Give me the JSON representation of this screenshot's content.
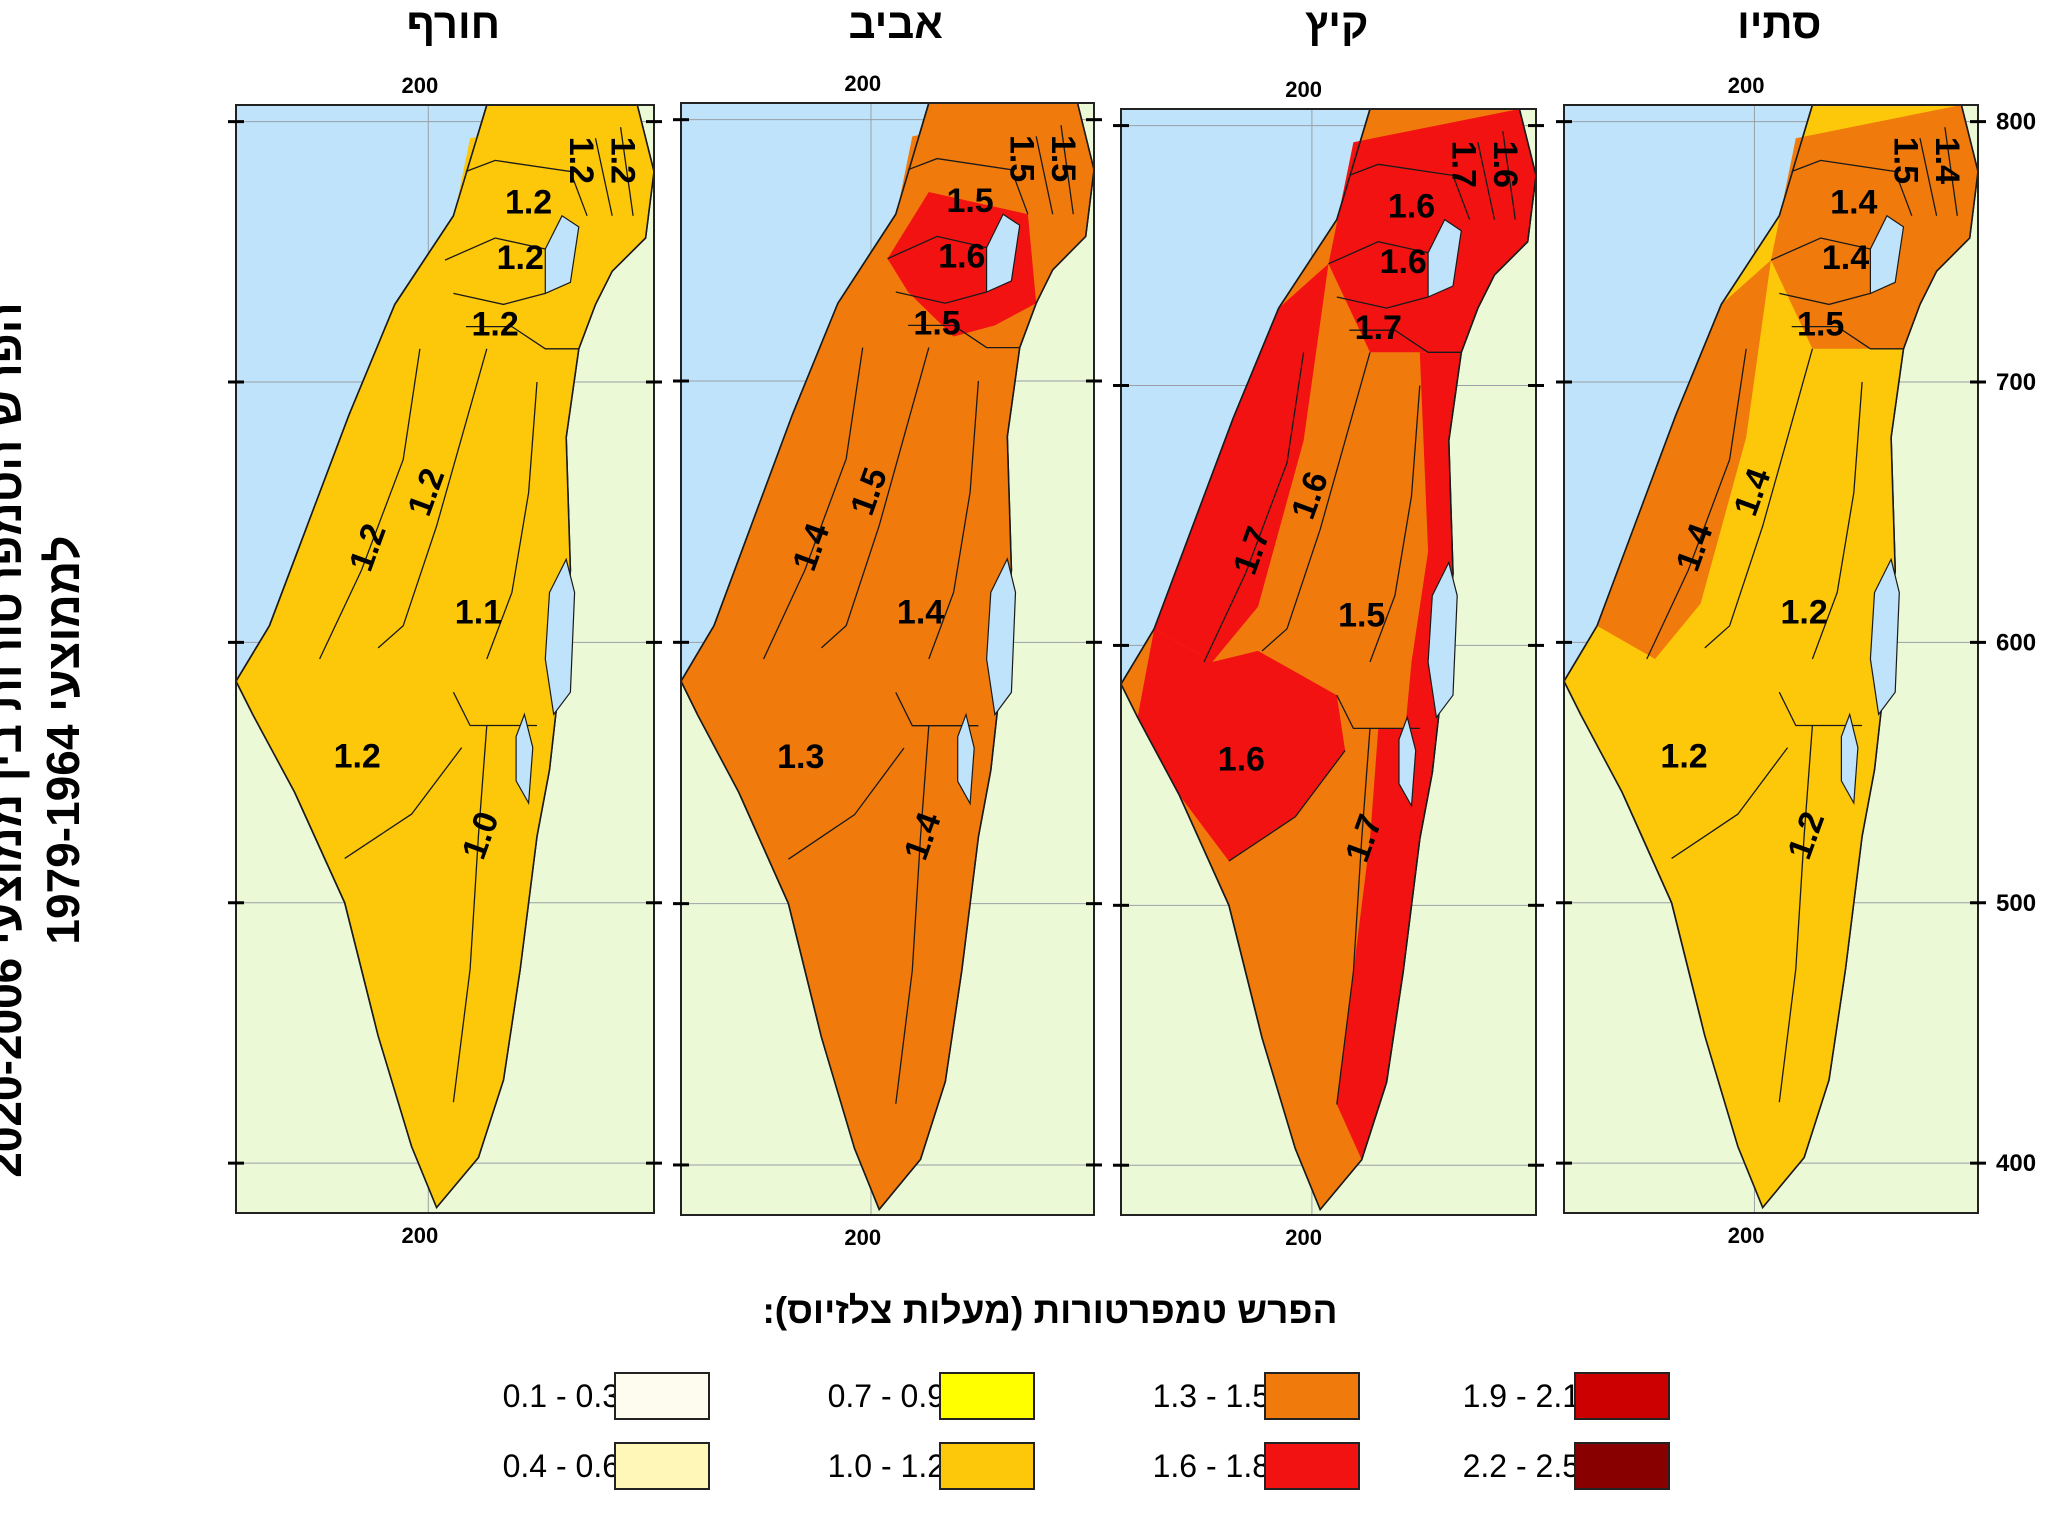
{
  "side_title": {
    "line1": "הפרש הטמפרטורות בין ממוצעי 2020-2006",
    "line2": "לממוצעי 1979-1964"
  },
  "panels": [
    {
      "season": "חורף",
      "top_tick": "200",
      "bottom_tick": "200",
      "colors": {
        "north": "#fdc80a",
        "center": "#fdc80a",
        "valley": "#fdc80a",
        "south": "#fdc80a",
        "south_plain": "#fdc80a"
      },
      "labels": [
        {
          "text": "1.2",
          "region": "upper-galilee-east-1"
        },
        {
          "text": "1.2",
          "region": "upper-galilee-east-2"
        },
        {
          "text": "1.2",
          "region": "upper-galilee"
        },
        {
          "text": "1.2",
          "region": "lower-galilee"
        },
        {
          "text": "1.2",
          "region": "jezreel"
        },
        {
          "text": "1.2",
          "region": "coast"
        },
        {
          "text": "1.2",
          "region": "samaria"
        },
        {
          "text": "1.1",
          "region": "judea"
        },
        {
          "text": "1.2",
          "region": "northern-negev"
        },
        {
          "text": "1.0",
          "region": "arava"
        }
      ]
    },
    {
      "season": "אביב",
      "top_tick": "200",
      "bottom_tick": "200",
      "colors": {
        "north": "#f07b0c",
        "center": "#f07b0c",
        "valley": "#f07b0c",
        "south": "#f07b0c",
        "south_plain": "#f07b0c",
        "galilee": "#f21212"
      },
      "labels": [
        {
          "text": "1.5",
          "region": "upper-galilee-east-1"
        },
        {
          "text": "1.5",
          "region": "upper-galilee-east-2"
        },
        {
          "text": "1.5",
          "region": "upper-galilee"
        },
        {
          "text": "1.6",
          "region": "lower-galilee"
        },
        {
          "text": "1.5",
          "region": "jezreel"
        },
        {
          "text": "1.4",
          "region": "coast"
        },
        {
          "text": "1.5",
          "region": "samaria"
        },
        {
          "text": "1.4",
          "region": "judea"
        },
        {
          "text": "1.3",
          "region": "northern-negev"
        },
        {
          "text": "1.4",
          "region": "arava"
        }
      ]
    },
    {
      "season": "קיץ",
      "top_tick": "200",
      "bottom_tick": "200",
      "colors": {
        "north": "#f21212",
        "center": "#f07b0c",
        "valley": "#f21212",
        "south": "#f07b0c",
        "south_plain": "#f21212",
        "coast": "#f21212"
      },
      "labels": [
        {
          "text": "1.7",
          "region": "upper-galilee-east-1"
        },
        {
          "text": "1.6",
          "region": "upper-galilee-east-2"
        },
        {
          "text": "1.6",
          "region": "upper-galilee"
        },
        {
          "text": "1.6",
          "region": "lower-galilee"
        },
        {
          "text": "1.7",
          "region": "jezreel"
        },
        {
          "text": "1.7",
          "region": "coast"
        },
        {
          "text": "1.6",
          "region": "samaria"
        },
        {
          "text": "1.5",
          "region": "judea"
        },
        {
          "text": "1.6",
          "region": "northern-negev"
        },
        {
          "text": "1.7",
          "region": "arava"
        }
      ]
    },
    {
      "season": "סתיו",
      "top_tick": "200",
      "bottom_tick": "200",
      "colors": {
        "north": "#f07b0c",
        "center": "#fdc80a",
        "valley": "#fdc80a",
        "south": "#fdc80a",
        "south_plain": "#fdc80a",
        "coast": "#f07b0c"
      },
      "labels": [
        {
          "text": "1.5",
          "region": "upper-galilee-east-1"
        },
        {
          "text": "1.4",
          "region": "upper-galilee-east-2"
        },
        {
          "text": "1.4",
          "region": "upper-galilee"
        },
        {
          "text": "1.4",
          "region": "lower-galilee"
        },
        {
          "text": "1.5",
          "region": "jezreel"
        },
        {
          "text": "1.4",
          "region": "coast"
        },
        {
          "text": "1.4",
          "region": "samaria"
        },
        {
          "text": "1.2",
          "region": "judea"
        },
        {
          "text": "1.2",
          "region": "northern-negev"
        },
        {
          "text": "1.2",
          "region": "arava"
        }
      ]
    }
  ],
  "y_axis": {
    "ticks": [
      "800",
      "700",
      "600",
      "500",
      "400"
    ]
  },
  "map_colors": {
    "sea": "#bfe3fa",
    "land": "#ebf9d7",
    "border": "#1a1a1a",
    "lake": "#bfe3fa"
  },
  "legend": {
    "title": "הפרש טמפרטורות (מעלות צלזיוס):",
    "items": [
      {
        "label": "0.1 - 0.3",
        "color": "#fefcef"
      },
      {
        "label": "0.4 - 0.6",
        "color": "#fef7b8"
      },
      {
        "label": "0.7 - 0.9",
        "color": "#ffff00"
      },
      {
        "label": "1.0 - 1.2",
        "color": "#fdc80a"
      },
      {
        "label": "1.3 - 1.5",
        "color": "#f07b0c"
      },
      {
        "label": "1.6 - 1.8",
        "color": "#f21212"
      },
      {
        "label": "1.9 - 2.1",
        "color": "#cc0000"
      },
      {
        "label": "2.2 - 2.5",
        "color": "#880000"
      }
    ]
  }
}
